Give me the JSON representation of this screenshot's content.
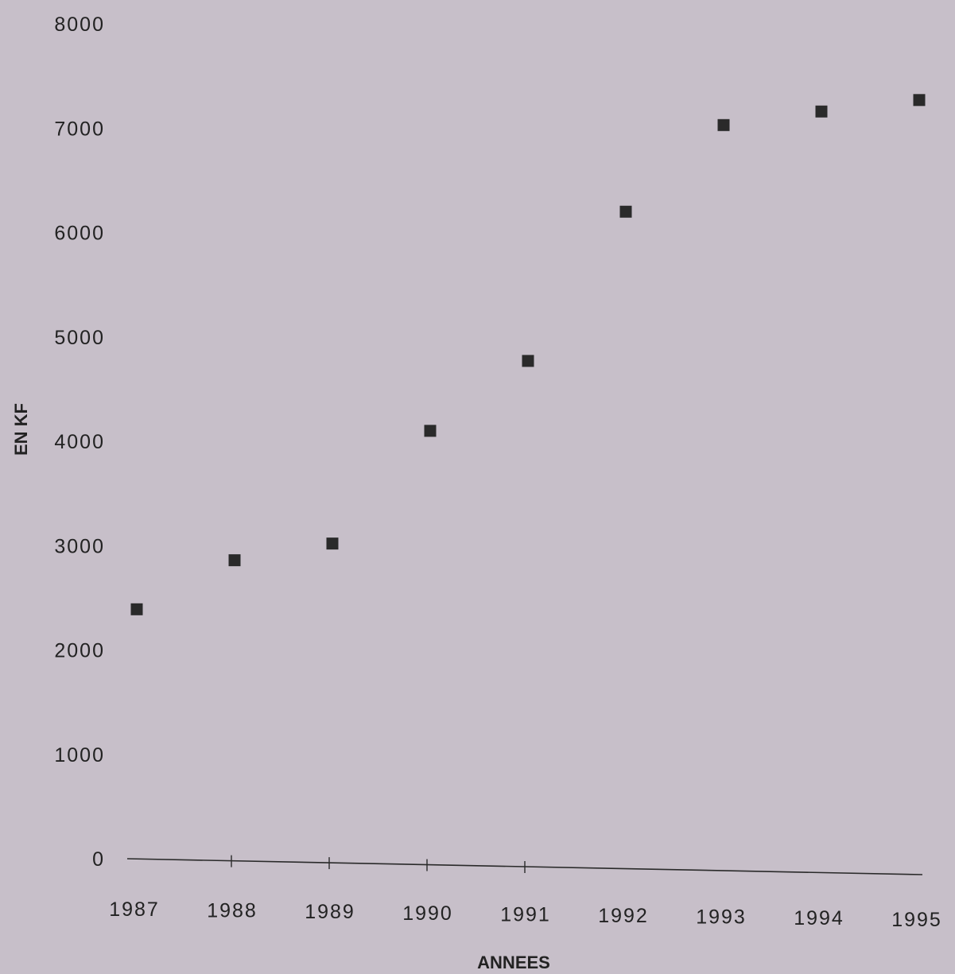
{
  "chart_data": {
    "type": "scatter",
    "title": "",
    "xlabel": "ANNEES",
    "ylabel": "EN KF",
    "ylim": [
      0,
      8000
    ],
    "yticks": [
      0,
      1000,
      2000,
      3000,
      4000,
      5000,
      6000,
      7000,
      8000
    ],
    "categories": [
      "1987",
      "1988",
      "1989",
      "1990",
      "1991",
      "1992",
      "1993",
      "1994",
      "1995"
    ],
    "series": [
      {
        "values": [
          2390,
          2860,
          3020,
          4100,
          4770,
          6200,
          7030,
          7160,
          7270
        ]
      }
    ],
    "grid": false,
    "legend": "none",
    "colors": {
      "background": "#c7bfc9",
      "marker": "#2a2a2a",
      "axis": "#2a2a2a",
      "text": "#222222"
    }
  }
}
